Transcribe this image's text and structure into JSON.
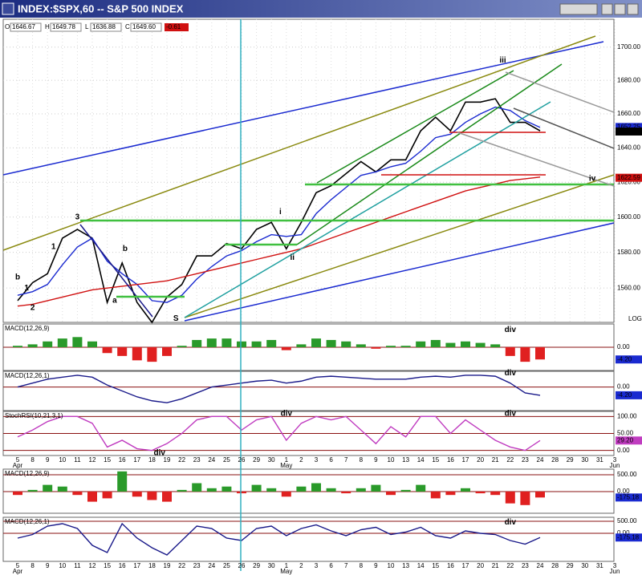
{
  "chart_data": [
    {
      "type": "line",
      "title": "INDEX:$SPX,60 -- S&P 500 INDEX",
      "log_scale": true,
      "scale_label": "LOG",
      "quote": [
        {
          "key": "O",
          "value": "1646.67"
        },
        {
          "key": "H",
          "value": "1649.78"
        },
        {
          "key": "L",
          "value": "1636.88"
        },
        {
          "key": "C",
          "value": "1649.60"
        }
      ],
      "change": "-0.61",
      "categories": [
        "5",
        "8",
        "9",
        "10",
        "11",
        "12",
        "15",
        "16",
        "17",
        "18",
        "19",
        "22",
        "23",
        "24",
        "25",
        "26",
        "29",
        "30",
        "1",
        "2",
        "3",
        "6",
        "7",
        "8",
        "9",
        "10",
        "13",
        "14",
        "15",
        "16",
        "17",
        "20",
        "21",
        "22",
        "23",
        "24",
        "28",
        "29",
        "30",
        "31",
        "3"
      ],
      "month_labels": [
        {
          "text": "Apr",
          "index": 0
        },
        {
          "text": "May",
          "index": 18
        },
        {
          "text": "Jun",
          "index": 40
        }
      ],
      "ylim": [
        1541,
        1717
      ],
      "yticks": [
        {
          "value": 1560,
          "label": "1560.00"
        },
        {
          "value": 1580,
          "label": "1580.00"
        },
        {
          "value": 1600,
          "label": "1600.00"
        },
        {
          "value": 1620,
          "label": "1620.00"
        },
        {
          "value": 1640,
          "label": "1640.00"
        },
        {
          "value": 1660,
          "label": "1660.00"
        },
        {
          "value": 1680,
          "label": "1680.00"
        },
        {
          "value": 1700,
          "label": "1700.00"
        }
      ],
      "grid": true,
      "series": [
        {
          "color": "#000000",
          "values": [
            1553,
            1563,
            1568,
            1588,
            1593,
            1588,
            1552,
            1574,
            1552,
            1541,
            1555,
            1562,
            1578,
            1578,
            1585,
            1582,
            1593,
            1597,
            1582,
            1597,
            1614,
            1618,
            1625,
            1632,
            1626,
            1633,
            1633,
            1650,
            1658,
            1650,
            1667,
            1667,
            1669,
            1655,
            1655,
            1650,
            null,
            null,
            null,
            null,
            null
          ]
        },
        {
          "color": "#1a2ad0",
          "values": [
            1556,
            1558,
            1562,
            1573,
            1583,
            1588,
            1575,
            1568,
            1562,
            1553,
            1552,
            1556,
            1565,
            1572,
            1578,
            1581,
            1586,
            1590,
            1589,
            1590,
            1602,
            1610,
            1617,
            1624,
            1626,
            1629,
            1631,
            1638,
            1646,
            1648,
            1655,
            1660,
            1664,
            1662,
            1656,
            1652,
            null,
            null,
            null,
            null,
            null
          ]
        },
        {
          "color": "#d01010",
          "values": [
            1550,
            1551,
            1553,
            1555,
            1557,
            1559,
            1560,
            1561,
            1562,
            1563,
            1564,
            1566,
            1568,
            1570,
            1572,
            1574,
            1576,
            1578,
            1580,
            1582,
            1585,
            1588,
            1591,
            1594,
            1597,
            1600,
            1603,
            1606,
            1609,
            1612,
            1615,
            1617,
            1619,
            1621,
            1622,
            1623,
            null,
            null,
            null,
            null,
            null
          ]
        }
      ],
      "last_values": [
        {
          "value": 1652.25,
          "label": "1652.25",
          "color": "#1a2ad0"
        },
        {
          "value": 1649.6,
          "label": "1649.60",
          "color": "#000000"
        },
        {
          "value": 1622.59,
          "label": "1622.59",
          "color": "#d01010"
        }
      ],
      "annotations": [
        {
          "text": "3",
          "x": 4,
          "y": 1600,
          "color": "#1a2ad0"
        },
        {
          "text": "b",
          "x": 0,
          "y": 1566,
          "color": "#000000"
        },
        {
          "text": "1",
          "x": 0.6,
          "y": 1560,
          "color": "#000000"
        },
        {
          "text": "2",
          "x": 1,
          "y": 1549,
          "color": "#000000"
        },
        {
          "text": "1",
          "x": 2.4,
          "y": 1583,
          "color": "#000000"
        },
        {
          "text": "b",
          "x": 7.2,
          "y": 1582,
          "color": "#000000"
        },
        {
          "text": "a",
          "x": 6.5,
          "y": 1553,
          "color": "#000000"
        },
        {
          "text": "S",
          "x": 10.6,
          "y": 1543,
          "color": "#1a8a1a"
        },
        {
          "text": "i",
          "x": 17.6,
          "y": 1603,
          "color": "#1a8a1a"
        },
        {
          "text": "ii",
          "x": 18.4,
          "y": 1577,
          "color": "#1a8a1a"
        },
        {
          "text": "iii",
          "x": 32.5,
          "y": 1692,
          "color": "#1a8a1a"
        },
        {
          "text": "iv",
          "x": 38.5,
          "y": 1622,
          "color": "#1a8a1a"
        }
      ]
    },
    {
      "type": "bar",
      "title": "MACD(12,26,9)",
      "ylim": [
        -8,
        8
      ],
      "yticks": [
        {
          "value": 0,
          "label": "0.00"
        }
      ],
      "series": [
        {
          "up_color": "#2a9a2a",
          "down_color": "#e02020",
          "values": [
            0.5,
            1,
            2,
            3,
            3.5,
            2,
            -2,
            -3,
            -4.5,
            -5,
            -3,
            0.5,
            2.5,
            3,
            3,
            2,
            2,
            2.5,
            -1,
            1,
            3,
            2.5,
            2,
            1,
            -0.5,
            0.5,
            0.5,
            2,
            2.5,
            1.5,
            2,
            1.5,
            1,
            -3,
            -5,
            -4.2,
            null,
            null,
            null,
            null,
            null
          ]
        }
      ],
      "last_values": [
        {
          "value": -4.2,
          "label": "-4.20",
          "color": "#1a2ad0"
        }
      ],
      "annotations": [
        {
          "text": "div",
          "x": 33,
          "y": 6,
          "color": "#d01010"
        }
      ]
    },
    {
      "type": "line",
      "title": "MACD(12,26,1)",
      "ylim": [
        -12,
        8
      ],
      "yticks": [
        {
          "value": 0,
          "label": "0.00"
        }
      ],
      "series": [
        {
          "color": "#1a1a8a",
          "values": [
            0,
            2,
            4,
            5,
            6,
            5,
            1,
            -2,
            -5,
            -7,
            -8,
            -6,
            -3,
            0,
            1,
            2,
            3,
            3.5,
            2,
            3,
            5,
            5.5,
            5,
            4.5,
            4,
            4,
            4,
            5,
            5.5,
            5,
            6,
            6,
            5.5,
            2,
            -3,
            -4.2,
            null,
            null,
            null,
            null,
            null
          ]
        }
      ],
      "last_values": [
        {
          "value": -4.2,
          "label": "-4.20",
          "color": "#1a2ad0"
        }
      ],
      "annotations": [
        {
          "text": "div",
          "x": 33,
          "y": 7,
          "color": "#d01010"
        }
      ]
    },
    {
      "type": "line",
      "title": "StochRSI(10,21,3,1)",
      "ylim": [
        -15,
        115
      ],
      "yticks": [
        {
          "value": 0,
          "label": "0.00"
        },
        {
          "value": 50,
          "label": "50.00"
        },
        {
          "value": 100,
          "label": "100.00"
        }
      ],
      "series": [
        {
          "color": "#c03cc0",
          "values": [
            40,
            60,
            85,
            100,
            100,
            80,
            10,
            30,
            5,
            0,
            20,
            50,
            90,
            100,
            100,
            60,
            90,
            100,
            30,
            80,
            100,
            90,
            100,
            60,
            20,
            70,
            40,
            100,
            100,
            50,
            90,
            60,
            30,
            10,
            0,
            29.2,
            null,
            null,
            null,
            null,
            null
          ]
        }
      ],
      "last_values": [
        {
          "value": 29.2,
          "label": "29.20",
          "color": "#c03cc0"
        }
      ],
      "annotations": [
        {
          "text": "div",
          "x": 18,
          "y": 108,
          "color": "#d01010"
        },
        {
          "text": "div",
          "x": 33,
          "y": 108,
          "color": "#d01010"
        },
        {
          "text": "div",
          "x": 9.5,
          "y": -8,
          "color": "#1a8a1a"
        }
      ]
    },
    {
      "type": "bar",
      "title": "MACD(12,26,9)",
      "ylim": [
        -643,
        667
      ],
      "yticks": [
        {
          "value": 0,
          "label": "0.00"
        },
        {
          "value": 500,
          "label": "500.00"
        }
      ],
      "series": [
        {
          "up_color": "#2a9a2a",
          "down_color": "#e02020",
          "values": [
            -100,
            50,
            200,
            150,
            -100,
            -300,
            -200,
            600,
            -150,
            -250,
            -300,
            50,
            250,
            100,
            150,
            -50,
            200,
            100,
            -150,
            150,
            250,
            100,
            -50,
            100,
            200,
            -100,
            50,
            200,
            -200,
            -100,
            100,
            -50,
            -100,
            -350,
            -400,
            -175.18,
            null,
            null,
            null,
            null,
            null
          ]
        }
      ],
      "last_values": [
        {
          "value": -175.18,
          "label": "-175.18",
          "color": "#1a2ad0"
        }
      ],
      "annotations": []
    },
    {
      "type": "line",
      "title": "MACD(12,26,1)",
      "ylim": [
        -1167,
        667
      ],
      "yticks": [
        {
          "value": 0,
          "label": "0.00"
        },
        {
          "value": 500,
          "label": "500.00"
        }
      ],
      "series": [
        {
          "color": "#1a1a8a",
          "values": [
            -200,
            -50,
            300,
            400,
            200,
            -500,
            -800,
            400,
            -200,
            -600,
            -900,
            -300,
            300,
            200,
            -200,
            -300,
            200,
            300,
            -100,
            200,
            350,
            100,
            -100,
            150,
            250,
            -50,
            50,
            250,
            -100,
            -200,
            100,
            0,
            -50,
            -300,
            -450,
            -175.18,
            null,
            null,
            null,
            null,
            null
          ]
        }
      ],
      "last_values": [
        {
          "value": -175.18,
          "label": "-175.18",
          "color": "#1a2ad0"
        }
      ],
      "annotations": [
        {
          "text": "div",
          "x": 33,
          "y": 450,
          "color": "#d01010"
        }
      ]
    }
  ]
}
